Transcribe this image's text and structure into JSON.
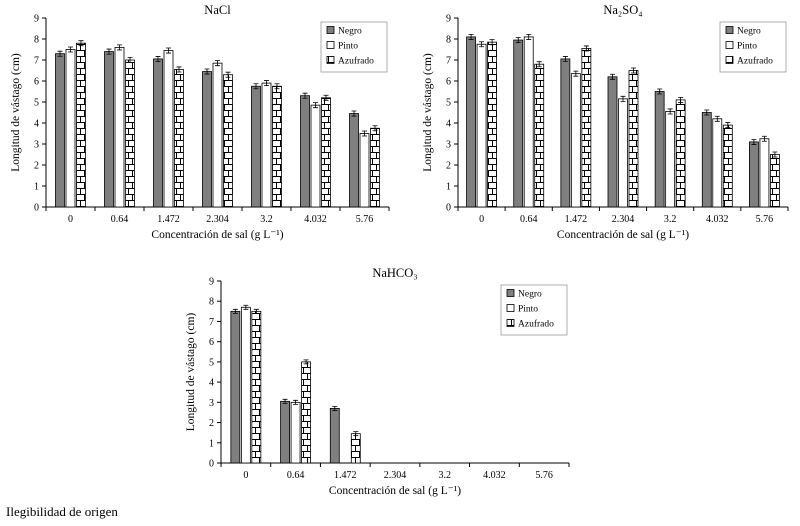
{
  "caption": "Ilegibilidad de origen",
  "colors": {
    "bar_negro": "#7f7f7f",
    "bar_pinto": "#ffffff",
    "bar_outline": "#000000",
    "legend_border": "#999999"
  },
  "chart_data": [
    {
      "type": "bar",
      "title": "NaCl",
      "xlabel": "Concentración de sal (g L⁻¹)",
      "ylabel": "Longitud de vástago (cm)",
      "ylim": [
        0,
        9
      ],
      "ytick_step": 1,
      "grid": false,
      "legend_position": "top-right",
      "error_bar": 0.12,
      "categories": [
        "0",
        "0.64",
        "1.472",
        "2.304",
        "3.2",
        "4.032",
        "5.76"
      ],
      "series": [
        {
          "name": "Negro",
          "style": "solid",
          "values": [
            7.3,
            7.4,
            7.05,
            6.45,
            5.75,
            5.3,
            4.45
          ]
        },
        {
          "name": "Pinto",
          "style": "white",
          "values": [
            7.5,
            7.6,
            7.45,
            6.85,
            5.9,
            4.85,
            3.5
          ]
        },
        {
          "name": "Azufrado",
          "style": "brick",
          "values": [
            7.8,
            7.0,
            6.55,
            6.3,
            5.75,
            5.2,
            3.75
          ]
        }
      ]
    },
    {
      "type": "bar",
      "title": "Na₂SO₄",
      "xlabel": "Concentración de sal (g L⁻¹)",
      "ylabel": "Longitud de vástago (cm)",
      "ylim": [
        0,
        9
      ],
      "ytick_step": 1,
      "grid": false,
      "legend_position": "top-right",
      "error_bar": 0.12,
      "categories": [
        "0",
        "0.64",
        "1.472",
        "2.304",
        "3.2",
        "4.032",
        "5.76"
      ],
      "series": [
        {
          "name": "Negro",
          "style": "solid",
          "values": [
            8.1,
            7.95,
            7.05,
            6.2,
            5.5,
            4.5,
            3.1
          ]
        },
        {
          "name": "Pinto",
          "style": "white",
          "values": [
            7.75,
            8.1,
            6.35,
            5.15,
            4.55,
            4.2,
            3.25
          ]
        },
        {
          "name": "Azufrado",
          "style": "brick",
          "values": [
            7.85,
            6.8,
            7.55,
            6.5,
            5.1,
            3.9,
            2.5
          ]
        }
      ]
    },
    {
      "type": "bar",
      "title": "NaHCO₃",
      "xlabel": "Concentración de sal (g L⁻¹)",
      "ylabel": "Longitud de vástago (cm)",
      "ylim": [
        0,
        9
      ],
      "ytick_step": 1,
      "grid": false,
      "legend_position": "top-right",
      "error_bar": 0.1,
      "categories": [
        "0",
        "0.64",
        "1.472",
        "2.304",
        "3.2",
        "4.032",
        "5.76"
      ],
      "series": [
        {
          "name": "Negro",
          "style": "solid",
          "values": [
            7.5,
            3.05,
            2.7,
            0,
            0,
            0,
            0
          ]
        },
        {
          "name": "Pinto",
          "style": "white",
          "values": [
            7.7,
            3.0,
            0,
            0,
            0,
            0,
            0
          ]
        },
        {
          "name": "Azufrado",
          "style": "brick",
          "values": [
            7.5,
            5.0,
            1.45,
            0,
            0,
            0,
            0
          ]
        }
      ]
    }
  ]
}
